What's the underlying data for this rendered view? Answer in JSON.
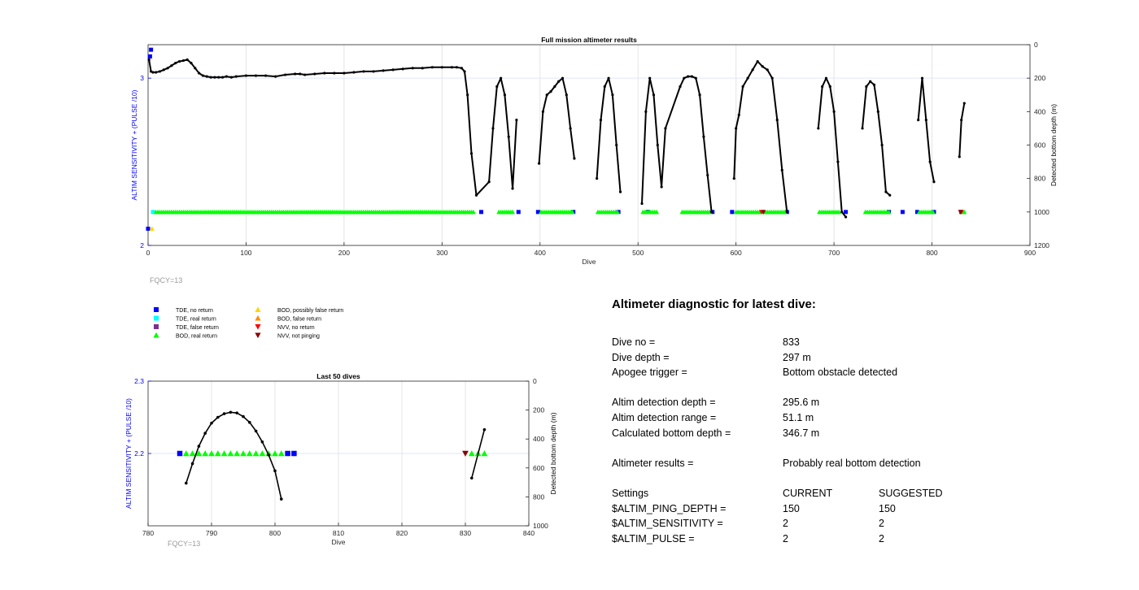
{
  "legend": {
    "entries": [
      {
        "label": "TDE, no return",
        "marker": "square",
        "color": "#0000ff"
      },
      {
        "label": "TDE, real return",
        "marker": "square",
        "color": "#00ffff"
      },
      {
        "label": "TDE, false return",
        "marker": "square",
        "color": "#7e2f8e"
      },
      {
        "label": "BOD, real return",
        "marker": "triangle-up",
        "color": "#00ff00"
      },
      {
        "label": "BOD, possibly false return",
        "marker": "triangle-up",
        "color": "#ffd700"
      },
      {
        "label": "BOD, false return",
        "marker": "triangle-up",
        "color": "#ff8c00"
      },
      {
        "label": "NVV, no return",
        "marker": "triangle-down",
        "color": "#ff0000"
      },
      {
        "label": "NVV, not pinging",
        "marker": "triangle-down",
        "color": "#8b0000"
      }
    ]
  },
  "diagnostic": {
    "title": "Altimeter diagnostic for latest dive:",
    "dive_no_label": "Dive no =",
    "dive_no": "833",
    "dive_depth_label": "Dive depth =",
    "dive_depth": "297 m",
    "apogee_label": "Apogee trigger =",
    "apogee": "Bottom obstacle detected",
    "altim_depth_label": "Altim detection depth =",
    "altim_depth": "295.6 m",
    "altim_range_label": "Altim detection range =",
    "altim_range": "51.1 m",
    "calc_depth_label": "Calculated bottom depth =",
    "calc_depth": "346.7 m",
    "results_label": "Altimeter results =",
    "results": "Probably real bottom detection",
    "settings_label": "Settings",
    "current_label": "CURRENT",
    "suggested_label": "SUGGESTED",
    "ping_label": "$ALTIM_PING_DEPTH =",
    "ping_current": "150",
    "ping_suggested": "150",
    "sens_label": "$ALTIM_SENSITIVITY =",
    "sens_current": "2",
    "sens_suggested": "2",
    "pulse_label": "$ALTIM_PULSE =",
    "pulse_current": "2",
    "pulse_suggested": "2"
  },
  "chart_data": [
    {
      "type": "line",
      "title": "Full mission altimeter results",
      "xlabel": "Dive",
      "ylabel_left": "ALTIM SENSITIVITY + (PULSE /10)",
      "ylabel_right": "Detected bottom depth (m)",
      "xlim": [
        0,
        900
      ],
      "xticks": [
        0,
        100,
        200,
        300,
        400,
        500,
        600,
        700,
        800,
        900
      ],
      "ylim_left": [
        2,
        3.2
      ],
      "yticks_left": [
        2,
        3
      ],
      "ylim_right": [
        1200,
        0
      ],
      "yticks_right": [
        0,
        200,
        400,
        600,
        800,
        1000,
        1200
      ],
      "grid": true,
      "note": "FQCY=13",
      "bottom_depth_x": [
        1,
        3,
        5,
        8,
        12,
        16,
        20,
        24,
        28,
        32,
        36,
        40,
        44,
        48,
        52,
        56,
        60,
        64,
        68,
        72,
        76,
        80,
        85,
        90,
        100,
        110,
        120,
        130,
        140,
        150,
        155,
        160,
        170,
        180,
        190,
        200,
        210,
        220,
        230,
        240,
        250,
        260,
        270,
        280,
        290,
        300,
        310,
        315,
        320,
        323,
        326,
        330,
        335,
        348,
        352,
        356,
        360,
        364,
        368,
        372,
        376,
        399,
        403,
        407,
        411,
        415,
        419,
        423,
        427,
        431,
        435,
        458,
        462,
        466,
        470,
        474,
        478,
        482,
        504,
        508,
        512,
        516,
        520,
        524,
        528,
        543,
        547,
        551,
        555,
        559,
        563,
        567,
        571,
        575,
        598,
        600,
        603,
        607,
        612,
        617,
        622,
        627,
        632,
        637,
        642,
        647,
        652,
        684,
        688,
        692,
        696,
        700,
        704,
        708,
        712,
        729,
        733,
        737,
        741,
        745,
        749,
        753,
        757,
        786,
        790,
        794,
        798,
        802,
        828,
        830,
        833
      ],
      "bottom_depth": [
        90,
        160,
        165,
        165,
        160,
        150,
        140,
        125,
        110,
        100,
        95,
        90,
        110,
        140,
        170,
        185,
        190,
        195,
        195,
        195,
        195,
        190,
        195,
        190,
        185,
        185,
        185,
        190,
        180,
        175,
        175,
        180,
        175,
        170,
        170,
        170,
        165,
        160,
        160,
        155,
        150,
        145,
        140,
        140,
        135,
        135,
        135,
        135,
        140,
        160,
        300,
        650,
        900,
        820,
        500,
        250,
        200,
        300,
        550,
        860,
        450,
        710,
        400,
        300,
        280,
        250,
        220,
        200,
        300,
        500,
        680,
        800,
        450,
        250,
        200,
        300,
        600,
        880,
        950,
        400,
        200,
        300,
        600,
        850,
        500,
        250,
        200,
        190,
        190,
        200,
        300,
        550,
        780,
        1000,
        800,
        500,
        420,
        250,
        200,
        150,
        100,
        130,
        150,
        200,
        450,
        750,
        1000,
        500,
        250,
        200,
        250,
        400,
        700,
        1000,
        1030,
        500,
        250,
        220,
        240,
        400,
        600,
        880,
        900,
        450,
        200,
        450,
        700,
        820,
        670,
        450,
        350
      ],
      "sensitivity_series": [
        {
          "name": "TDE, no return",
          "x": [
            0,
            2,
            3,
            340,
            378,
            398,
            434,
            480,
            510,
            576,
            596,
            652,
            712,
            756,
            770,
            785,
            802,
            830
          ],
          "y": [
            2.1,
            3.13,
            3.17,
            2.2,
            2.2,
            2.2,
            2.2,
            2.2,
            2.2,
            2.2,
            2.2,
            2.2,
            2.2,
            2.2,
            2.2,
            2.2,
            2.2,
            2.2
          ]
        },
        {
          "name": "TDE, real return",
          "x": [
            5
          ],
          "y": [
            2.2
          ]
        },
        {
          "name": "BOD, real return",
          "x_ranges": [
            [
              8,
              332
            ],
            [
              358,
              372
            ],
            [
              401,
              433
            ],
            [
              459,
              480
            ],
            [
              505,
              520
            ],
            [
              545,
              573
            ],
            [
              600,
              650
            ],
            [
              685,
              705
            ],
            [
              732,
              757
            ],
            [
              787,
              802
            ],
            [
              831,
              833
            ]
          ],
          "y": 2.2
        },
        {
          "name": "BOD, possibly false return",
          "x": [
            4
          ],
          "y": [
            2.1
          ]
        },
        {
          "name": "NVV, no return",
          "x": [
            626,
            830
          ],
          "y": [
            2.2,
            2.2
          ]
        },
        {
          "name": "NVV, not pinging",
          "x": [
            628,
            829
          ],
          "y": [
            2.2,
            2.2
          ]
        }
      ]
    },
    {
      "type": "line",
      "title": "Last 50 dives",
      "xlabel": "Dive",
      "ylabel_left": "ALTIM SENSITIVITY + (PULSE /10)",
      "ylabel_right": "Detected bottom depth (m)",
      "xlim": [
        780,
        840
      ],
      "xticks": [
        780,
        790,
        800,
        810,
        820,
        830,
        840
      ],
      "ylim_left": [
        2.1,
        2.3
      ],
      "yticks_left": [
        2.2,
        2.3
      ],
      "ylim_right": [
        1000,
        0
      ],
      "yticks_right": [
        0,
        200,
        400,
        600,
        800,
        1000
      ],
      "grid": true,
      "note": "FQCY=13",
      "bottom_depth_x": [
        786,
        787,
        788,
        789,
        790,
        791,
        792,
        793,
        794,
        795,
        796,
        797,
        798,
        799,
        800,
        801,
        831,
        833
      ],
      "bottom_depth": [
        705,
        570,
        450,
        360,
        290,
        250,
        225,
        215,
        220,
        245,
        285,
        345,
        420,
        510,
        620,
        815,
        670,
        335
      ],
      "sensitivity_series": [
        {
          "name": "TDE, no return",
          "x": [
            785,
            802,
            803
          ],
          "y": [
            2.2,
            2.2,
            2.2
          ]
        },
        {
          "name": "BOD, real return",
          "x": [
            786,
            787,
            788,
            789,
            790,
            791,
            792,
            793,
            794,
            795,
            796,
            797,
            798,
            799,
            800,
            801,
            831,
            832,
            833
          ],
          "y": 2.2
        },
        {
          "name": "NVV, not pinging",
          "x": [
            830
          ],
          "y": [
            2.2
          ]
        }
      ]
    }
  ]
}
